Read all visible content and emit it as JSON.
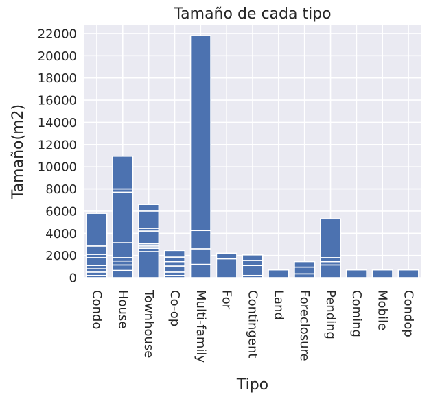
{
  "chart_data": {
    "type": "bar",
    "stacked_segments": true,
    "title": "Tamaño de cada tipo",
    "xlabel": "Tipo",
    "ylabel": "Tamaño(m2)",
    "ylim": [
      0,
      22800
    ],
    "yticks": [
      0,
      2000,
      4000,
      6000,
      8000,
      10000,
      12000,
      14000,
      16000,
      18000,
      20000,
      22000
    ],
    "grid": true,
    "colors": {
      "bar": "#4c72b0",
      "background": "#eaeaf2",
      "grid": "#ffffff",
      "text": "#262626"
    },
    "categories": [
      "Condo",
      "House",
      "Townhouse",
      "Co-op",
      "Multi-family",
      "For",
      "Contingent",
      "Land",
      "Foreclosure",
      "Pending",
      "Coming",
      "Mobile",
      "Condop"
    ],
    "values": [
      5800,
      10950,
      6600,
      2450,
      21800,
      2200,
      2050,
      700,
      1450,
      5300,
      700,
      700,
      700
    ],
    "segments": [
      [
        200,
        500,
        800,
        1100,
        1800,
        2100,
        2850,
        5800
      ],
      [
        650,
        1150,
        1500,
        1800,
        3150,
        7700,
        8000,
        10950
      ],
      [
        2350,
        2650,
        2850,
        3050,
        4200,
        4450,
        6000,
        6600
      ],
      [
        200,
        500,
        1050,
        1450,
        1850,
        2450
      ],
      [
        1200,
        2600,
        4250,
        21800
      ],
      [
        1700,
        2200
      ],
      [
        200,
        1100,
        1550,
        2050
      ],
      [
        700
      ],
      [
        350,
        950,
        1450
      ],
      [
        1150,
        1450,
        1800,
        5300
      ],
      [
        700
      ],
      [
        700
      ],
      [
        700
      ]
    ]
  }
}
